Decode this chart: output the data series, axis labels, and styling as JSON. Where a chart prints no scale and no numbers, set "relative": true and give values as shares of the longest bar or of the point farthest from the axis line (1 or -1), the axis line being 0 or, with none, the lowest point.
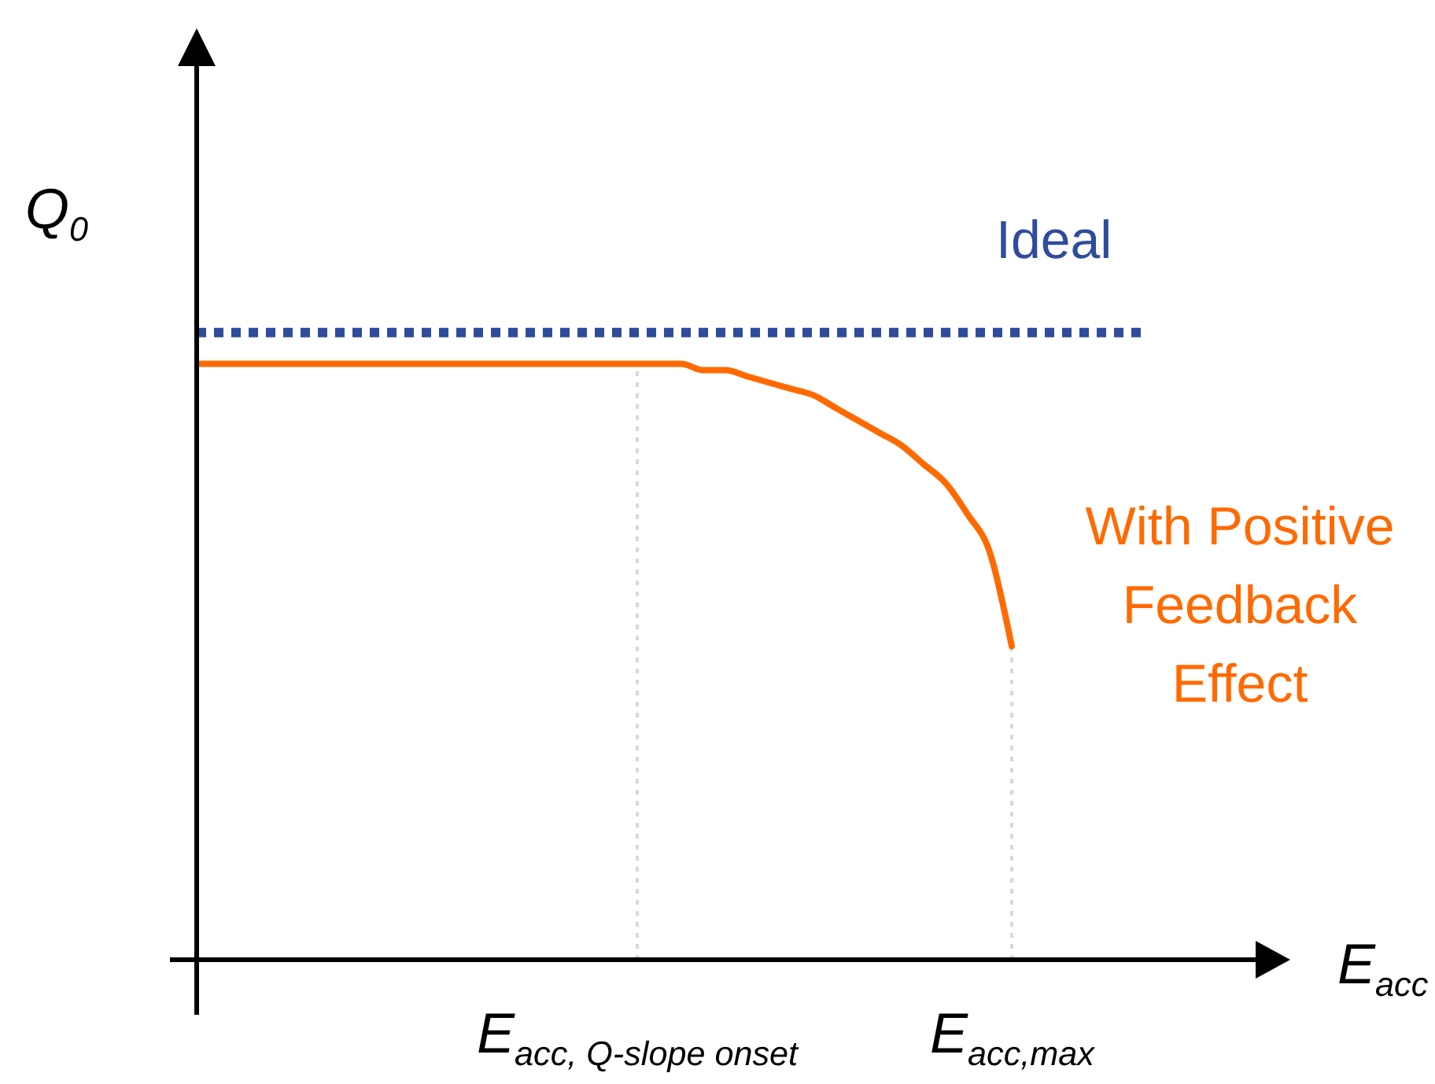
{
  "chart_data": {
    "type": "line",
    "relative": true,
    "xlabel": "E$_{acc}$",
    "ylabel": "Q$_{0}$",
    "categories": [
      null,
      null,
      null,
      null,
      null,
      null,
      null,
      null,
      null,
      null,
      null,
      null,
      null,
      null,
      null,
      null,
      null,
      null,
      null,
      null,
      "E$_{acc, Q-slope onset}$",
      null,
      null,
      null,
      null,
      null,
      null,
      null,
      null,
      null,
      null,
      null,
      null,
      null,
      null,
      null,
      null,
      "E$_{acc,max}$",
      null,
      null,
      null,
      null,
      null,
      null,
      null,
      null,
      null,
      null,
      null,
      null
    ],
    "ref_lines": [
      {
        "axis": "x",
        "value": "E$_{acc, Q-slope onset}$",
        "color": "#d9d9d9",
        "line_style": "dotted"
      },
      {
        "axis": "x",
        "value": "E$_{acc,max}$",
        "color": "#d9d9d9",
        "line_style": "dotted"
      }
    ],
    "series": [
      {
        "name": "Ideal",
        "color": "#2f4b9c",
        "line_style": "dotted",
        "values": [
          1,
          1,
          1,
          1,
          1,
          1,
          1,
          1,
          1,
          1,
          1,
          1,
          1,
          1,
          1,
          1,
          1,
          1,
          1,
          1,
          1,
          1,
          1,
          1,
          1,
          1,
          1,
          1,
          1,
          1,
          1,
          1,
          1,
          1,
          1,
          1,
          1,
          1,
          1,
          1,
          1,
          1,
          1,
          1,
          null,
          null,
          null,
          null,
          null,
          null
        ]
      },
      {
        "name": "With Positive Feedback Effect",
        "color": "#ff6a00",
        "line_style": "solid",
        "values": [
          0.95,
          0.95,
          0.95,
          0.95,
          0.95,
          0.95,
          0.95,
          0.95,
          0.95,
          0.95,
          0.95,
          0.95,
          0.95,
          0.95,
          0.95,
          0.95,
          0.95,
          0.95,
          0.95,
          0.95,
          0.95,
          0.95,
          0.95,
          0.94,
          0.94,
          0.93,
          0.92,
          0.91,
          0.9,
          0.88,
          0.86,
          0.84,
          0.82,
          0.79,
          0.76,
          0.71,
          0.65,
          0.5,
          null,
          null,
          null,
          null,
          null,
          null,
          null,
          null,
          null,
          null,
          null,
          null
        ]
      }
    ]
  }
}
